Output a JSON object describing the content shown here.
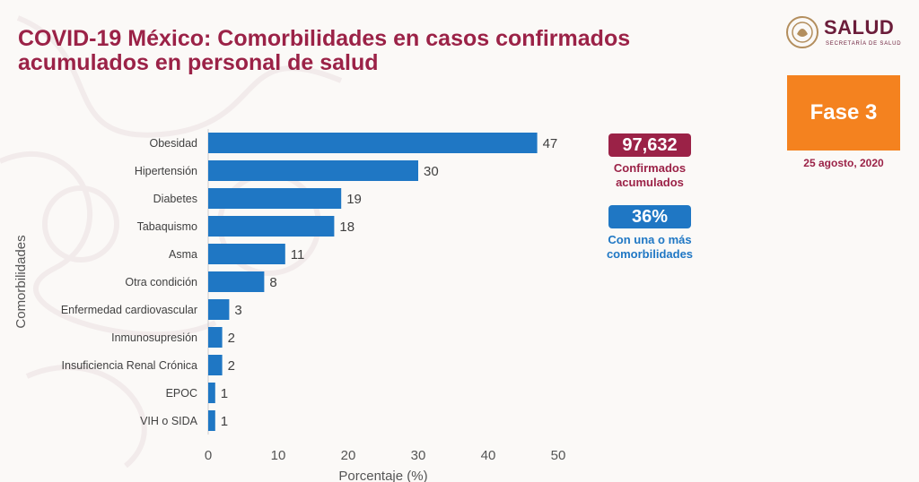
{
  "title": {
    "line1": "COVID-19 México: Comorbilidades en casos confirmados",
    "line2": "acumulados en personal de salud"
  },
  "logo": {
    "word": "SALUD",
    "subtitle": "SECRETARÍA DE SALUD"
  },
  "phase": {
    "label": "Fase 3",
    "date": "25 agosto, 2020"
  },
  "stats": {
    "confirmed_value": "97,632",
    "confirmed_label_line1": "Confirmados",
    "confirmed_label_line2": "acumulados",
    "comorbid_value": "36%",
    "comorbid_label_line1": "Con una o más",
    "comorbid_label_line2": "comorbilidades"
  },
  "colors": {
    "bar": "#1f77c4",
    "brand": "#9b2247",
    "phase": "#f4821f"
  },
  "chart_data": {
    "type": "bar",
    "orientation": "horizontal",
    "categories": [
      "Obesidad",
      "Hipertensión",
      "Diabetes",
      "Tabaquismo",
      "Asma",
      "Otra condición",
      "Enfermedad cardiovascular",
      "Inmunosupresión",
      "Insuficiencia Renal Crónica",
      "EPOC",
      "VIH o SIDA"
    ],
    "values": [
      47,
      30,
      19,
      18,
      11,
      8,
      3,
      2,
      2,
      1,
      1
    ],
    "xlabel": "Porcentaje (%)",
    "ylabel": "Comorbilidades",
    "xlim": [
      0,
      50
    ],
    "xticks": [
      0,
      10,
      20,
      30,
      40,
      50
    ],
    "grid": false
  }
}
